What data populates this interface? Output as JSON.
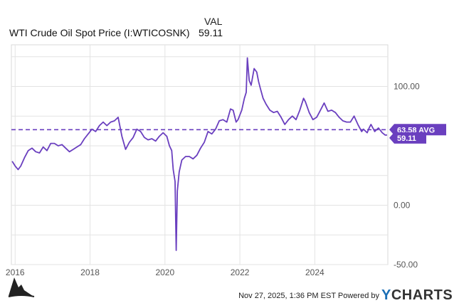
{
  "legend": {
    "column_header": "VAL",
    "series_name": "WTI Crude Oil Spot Price (I:WTICOSNK)",
    "series_value": "59.11"
  },
  "footer": {
    "timestamp": "Nov 27, 2025, 1:36 PM EST",
    "powered_by": "Powered by",
    "brand_prefix": "Y",
    "brand_rest": "CHARTS"
  },
  "colors": {
    "series": "#6a3fbf",
    "avg_line": "#6a3fbf",
    "grid": "#e3e3e3",
    "axis_text": "#555555"
  },
  "chart_data": {
    "type": "line",
    "x_tick_labels": [
      "2016",
      "2018",
      "2020",
      "2022",
      "2024"
    ],
    "x_tick_values": [
      2016,
      2018,
      2020,
      2022,
      2024
    ],
    "y_tick_labels": [
      "100.00",
      "0.00",
      "-50.00"
    ],
    "y_tick_values": [
      100,
      0,
      -50
    ],
    "ylim": [
      -50,
      135
    ],
    "xlim": [
      2015.9,
      2025.95
    ],
    "grid": true,
    "avg_label": "63.58 AVG",
    "avg_value": 63.58,
    "last_label": "59.11",
    "last_value": 59.11,
    "series": [
      {
        "name": "WTI Crude Oil Spot Price (I:WTICOSNK)",
        "x": [
          2015.92,
          2016.0,
          2016.08,
          2016.15,
          2016.25,
          2016.35,
          2016.45,
          2016.55,
          2016.65,
          2016.75,
          2016.85,
          2016.95,
          2017.05,
          2017.15,
          2017.25,
          2017.35,
          2017.45,
          2017.55,
          2017.65,
          2017.75,
          2017.85,
          2017.95,
          2018.05,
          2018.15,
          2018.25,
          2018.35,
          2018.45,
          2018.55,
          2018.65,
          2018.75,
          2018.85,
          2018.95,
          2019.05,
          2019.15,
          2019.25,
          2019.35,
          2019.45,
          2019.55,
          2019.65,
          2019.75,
          2019.85,
          2019.95,
          2020.05,
          2020.12,
          2020.18,
          2020.22,
          2020.27,
          2020.3,
          2020.33,
          2020.38,
          2020.45,
          2020.55,
          2020.65,
          2020.75,
          2020.85,
          2020.95,
          2021.05,
          2021.15,
          2021.25,
          2021.35,
          2021.45,
          2021.55,
          2021.65,
          2021.75,
          2021.82,
          2021.9,
          2021.95,
          2022.05,
          2022.12,
          2022.17,
          2022.2,
          2022.25,
          2022.3,
          2022.38,
          2022.45,
          2022.5,
          2022.55,
          2022.62,
          2022.7,
          2022.8,
          2022.9,
          2023.0,
          2023.1,
          2023.2,
          2023.3,
          2023.4,
          2023.5,
          2023.6,
          2023.7,
          2023.75,
          2023.85,
          2023.95,
          2024.05,
          2024.15,
          2024.25,
          2024.35,
          2024.45,
          2024.55,
          2024.65,
          2024.75,
          2024.85,
          2024.95,
          2025.05,
          2025.15,
          2025.25,
          2025.3,
          2025.4,
          2025.45,
          2025.5,
          2025.6,
          2025.7,
          2025.8,
          2025.88,
          2025.93
        ],
        "values": [
          37,
          33,
          30,
          33,
          40,
          46,
          48,
          45,
          44,
          49,
          46,
          52,
          52,
          50,
          51,
          48,
          45,
          47,
          49,
          51,
          56,
          60,
          64,
          62,
          67,
          70,
          67,
          70,
          71,
          74,
          58,
          47,
          53,
          57,
          64,
          62,
          57,
          55,
          56,
          54,
          58,
          61,
          58,
          50,
          46,
          30,
          20,
          -38,
          12,
          28,
          38,
          41,
          41,
          39,
          42,
          48,
          53,
          62,
          60,
          64,
          71,
          72,
          70,
          81,
          80,
          70,
          72,
          80,
          90,
          95,
          124,
          105,
          101,
          115,
          112,
          104,
          98,
          90,
          85,
          80,
          78,
          79,
          74,
          68,
          72,
          75,
          72,
          80,
          90,
          87,
          78,
          72,
          74,
          80,
          86,
          79,
          80,
          78,
          74,
          71,
          70,
          70,
          75,
          68,
          62,
          64,
          61,
          65,
          68,
          62,
          65,
          61,
          59,
          59.11
        ]
      }
    ]
  }
}
